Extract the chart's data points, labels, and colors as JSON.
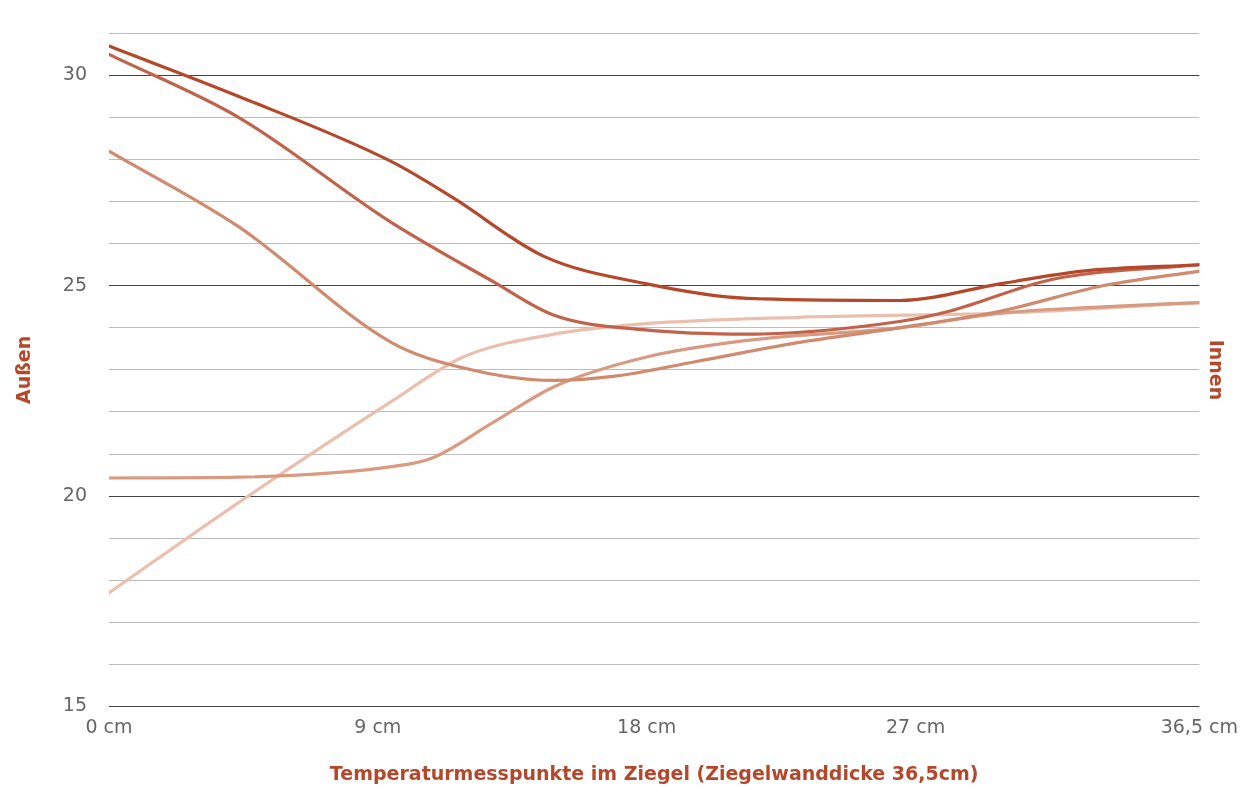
{
  "chart_data": {
    "type": "line",
    "xlabel": "Temperaturmesspunkte im Ziegel (Ziegelwanddicke 36,5cm)",
    "ylabel": "Außen",
    "y2label": "Innen",
    "xlim": [
      0,
      36.5
    ],
    "xticks": [
      {
        "value": 0,
        "label": "0 cm"
      },
      {
        "value": 9,
        "label": "9 cm"
      },
      {
        "value": 18,
        "label": "18 cm"
      },
      {
        "value": 27,
        "label": "27 cm"
      },
      {
        "value": 36.5,
        "label": "36,5 cm"
      }
    ],
    "ylim": [
      15,
      31
    ],
    "yticks": [
      15,
      {
        "value": 16,
        "label": null
      },
      {
        "value": 17,
        "label": null
      },
      {
        "value": 18,
        "label": null
      },
      {
        "value": 19,
        "label": null
      },
      20,
      {
        "value": 21,
        "label": null
      },
      {
        "value": 22,
        "label": null
      },
      {
        "value": 23,
        "label": null
      },
      {
        "value": 24,
        "label": null
      },
      25,
      {
        "value": 26,
        "label": null
      },
      {
        "value": 27,
        "label": null
      },
      {
        "value": 28,
        "label": null
      },
      {
        "value": 29,
        "label": null
      },
      30,
      {
        "value": 31,
        "label": null
      }
    ],
    "grid": "y",
    "marker": "none",
    "line_style": "solid",
    "legend": false,
    "series": [
      {
        "color": "#b5472a",
        "x": [
          0,
          4.35,
          9.46,
          11.5,
          14.56,
          17.96,
          21.36,
          26.46,
          29.86,
          32.59,
          36.5
        ],
        "values": [
          30.7,
          29.5,
          27.95,
          27.1,
          25.7,
          25.05,
          24.7,
          24.65,
          25.05,
          25.35,
          25.5
        ]
      },
      {
        "color": "#c0634a",
        "x": [
          0,
          4.35,
          9.46,
          12.86,
          14.9,
          17.96,
          21.36,
          26.46,
          28.16,
          31.56,
          36.5
        ],
        "values": [
          30.5,
          29.0,
          26.5,
          25.1,
          24.3,
          23.95,
          23.85,
          24.15,
          24.4,
          25.15,
          25.5
        ]
      },
      {
        "color": "#d08a6e",
        "x": [
          0,
          4.35,
          9.46,
          11.84,
          14.9,
          16.94,
          19.66,
          23.06,
          26.46,
          29.86,
          33.27,
          36.5
        ],
        "values": [
          28.2,
          26.4,
          23.65,
          23.05,
          22.75,
          22.85,
          23.2,
          23.65,
          24.0,
          24.4,
          25.0,
          25.35
        ]
      },
      {
        "color": "#d99a82",
        "x": [
          0,
          4.35,
          9.46,
          10.8,
          12.86,
          14.9,
          17.96,
          21.36,
          26.46,
          29.86,
          33.27,
          36.5
        ],
        "values": [
          20.43,
          20.45,
          20.7,
          20.9,
          21.75,
          22.6,
          23.3,
          23.7,
          24.0,
          24.35,
          24.5,
          24.6
        ]
      },
      {
        "color": "#ebbfae",
        "x": [
          0,
          4.35,
          9.46,
          11.84,
          14.9,
          17.96,
          23.06,
          29.86,
          36.5
        ],
        "values": [
          17.7,
          19.85,
          22.25,
          23.3,
          23.85,
          24.1,
          24.25,
          24.35,
          24.6
        ]
      }
    ]
  }
}
